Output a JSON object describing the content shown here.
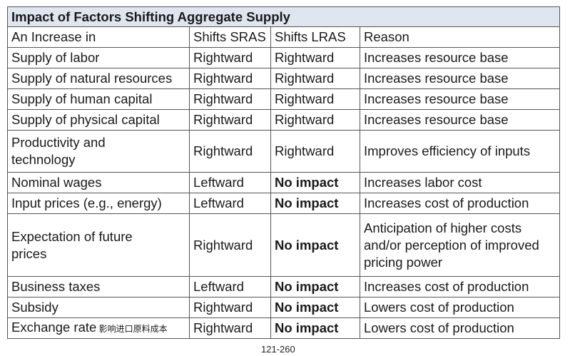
{
  "table": {
    "title": "Impact of Factors Shifting Aggregate Supply",
    "header": [
      "An Increase in",
      "Shifts SRAS",
      "Shifts LRAS",
      "Reason"
    ],
    "rows": [
      [
        "Supply of labor",
        "Rightward",
        "Rightward",
        "Increases resource base"
      ],
      [
        "Supply of natural resources",
        "Rightward",
        "Rightward",
        "Increases resource base"
      ],
      [
        "Supply of human capital",
        "Rightward",
        "Rightward",
        "Increases resource base"
      ],
      [
        "Supply of physical capital",
        "Rightward",
        "Rightward",
        "Increases resource base"
      ],
      [
        "Productivity and technology",
        "Rightward",
        "Rightward",
        "Improves efficiency of inputs"
      ],
      [
        "Nominal wages",
        "Leftward",
        "No impact",
        "Increases labor cost"
      ],
      [
        "Input prices (e.g., energy)",
        "Leftward",
        "No impact",
        "Increases cost of production"
      ],
      [
        "Expectation of future prices",
        "Rightward",
        "No impact",
        "Anticipation of higher costs and/or perception of improved pricing power"
      ],
      [
        "Business taxes",
        "Leftward",
        "No impact",
        "Increases cost of production"
      ],
      [
        "Subsidy",
        "Rightward",
        "No impact",
        "Lowers cost of production"
      ],
      [
        "Exchange rate",
        "Rightward",
        "No impact",
        "Lowers cost of production"
      ]
    ],
    "exchange_note": "影响进口原料成本"
  },
  "footer": {
    "page": "121-260"
  }
}
